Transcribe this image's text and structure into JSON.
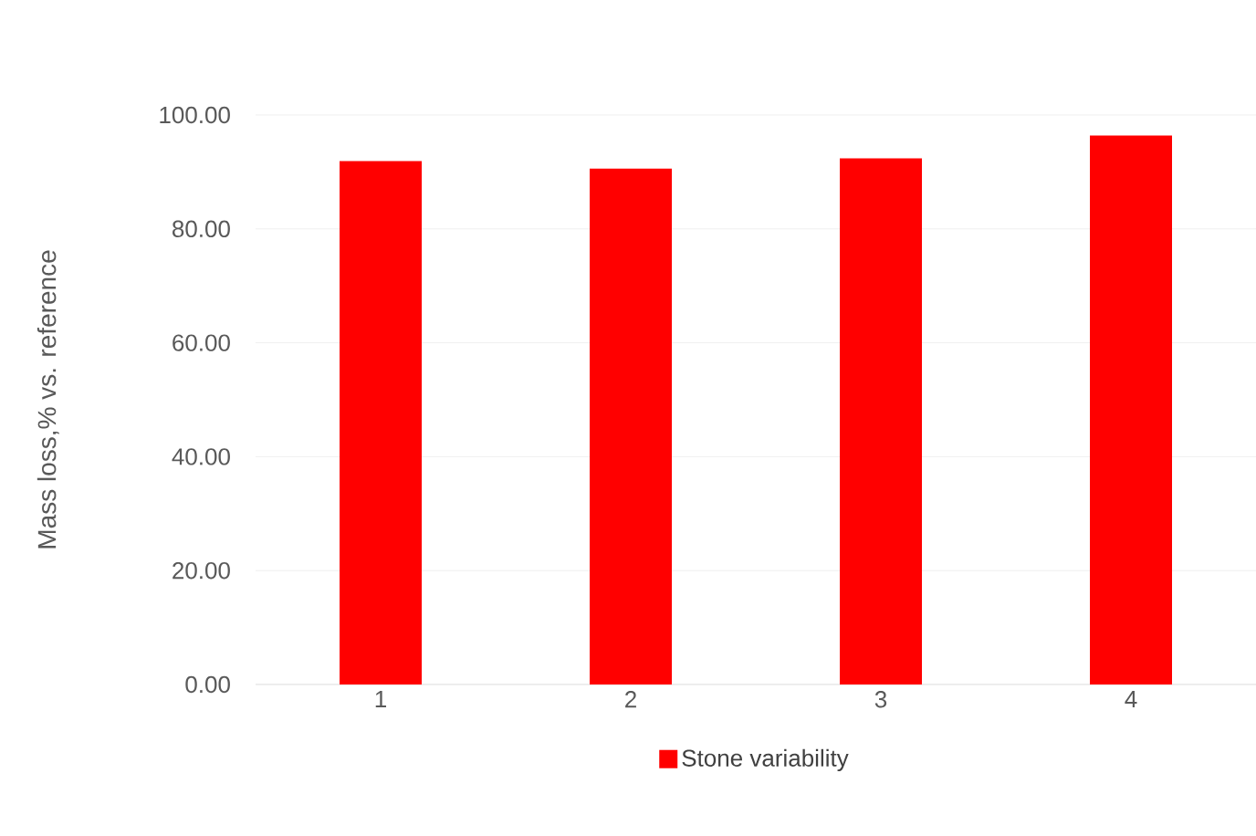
{
  "chart_data": {
    "type": "bar",
    "ylabel": "Mass loss,% vs. reference",
    "categories": [
      "1",
      "2",
      "3",
      "4"
    ],
    "series": [
      {
        "name": "Stone variability",
        "color": "#ff0000",
        "values": [
          91.9,
          90.6,
          92.4,
          96.4
        ]
      }
    ],
    "ylim": [
      0,
      100
    ],
    "yticks": [
      {
        "value": 0,
        "label": "0.00"
      },
      {
        "value": 20,
        "label": "20.00"
      },
      {
        "value": 40,
        "label": "40.00"
      },
      {
        "value": 60,
        "label": "60.00"
      },
      {
        "value": 80,
        "label": "80.00"
      },
      {
        "value": 100,
        "label": "100.00"
      }
    ],
    "grid": "y",
    "legend": "bottom"
  }
}
